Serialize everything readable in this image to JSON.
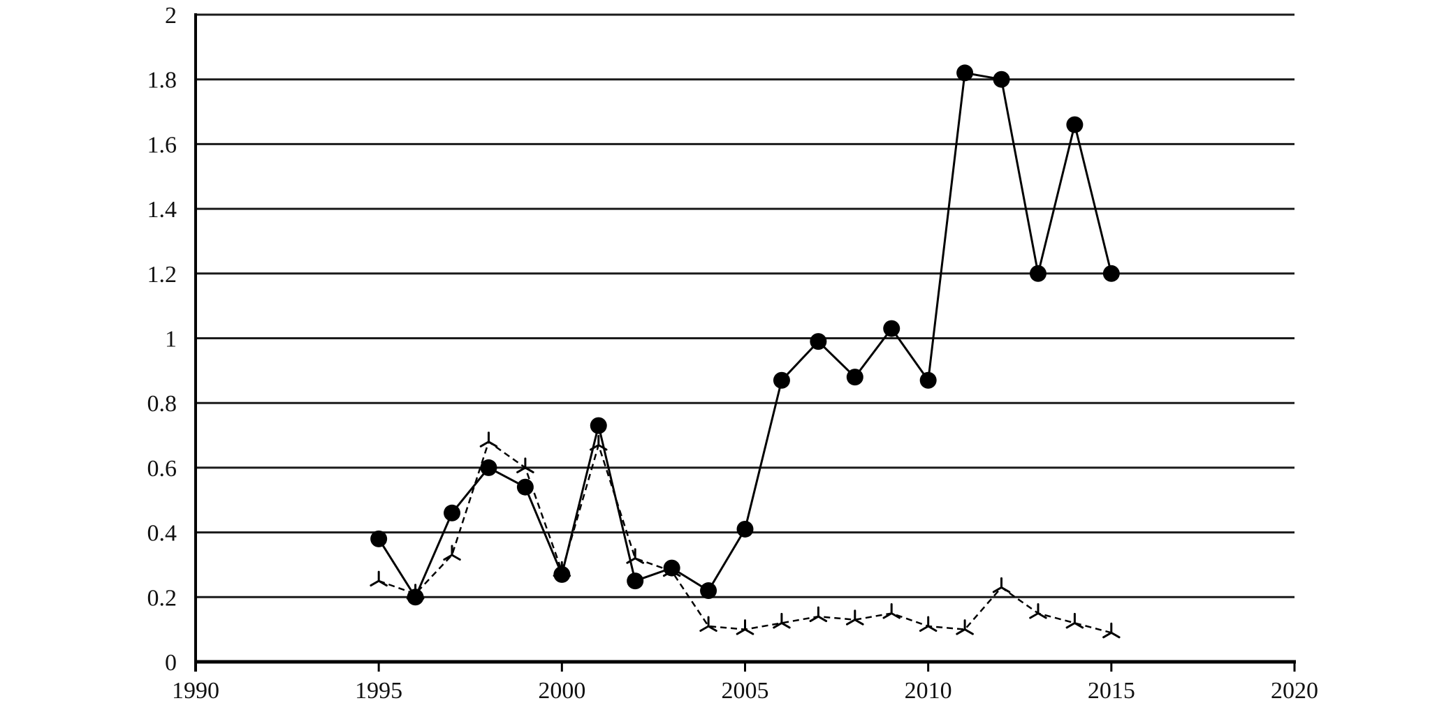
{
  "chart_data": {
    "type": "line",
    "title": "",
    "xlabel": "",
    "ylabel": "",
    "xlim": [
      1990,
      2020
    ],
    "ylim": [
      0,
      2
    ],
    "x_ticks": [
      "1990",
      "1995",
      "2000",
      "2005",
      "2010",
      "2015",
      "2020"
    ],
    "y_ticks": [
      "0",
      "0.2",
      "0.4",
      "0.6",
      "0.8",
      "1",
      "1.2",
      "1.4",
      "1.6",
      "1.8",
      "2"
    ],
    "grid": "horizontal",
    "series": [
      {
        "style": "solid",
        "marker": "filled-circle",
        "color": "#000000",
        "points": [
          [
            1995,
            0.38
          ],
          [
            1996,
            0.2
          ],
          [
            1997,
            0.46
          ],
          [
            1998,
            0.6
          ],
          [
            1999,
            0.54
          ],
          [
            2000,
            0.27
          ],
          [
            2001,
            0.73
          ],
          [
            2002,
            0.25
          ],
          [
            2003,
            0.29
          ],
          [
            2004,
            0.22
          ],
          [
            2005,
            0.41
          ],
          [
            2006,
            0.87
          ],
          [
            2007,
            0.99
          ],
          [
            2008,
            0.88
          ],
          [
            2009,
            1.03
          ],
          [
            2010,
            0.87
          ],
          [
            2011,
            1.82
          ],
          [
            2012,
            1.8
          ],
          [
            2013,
            1.2
          ],
          [
            2014,
            1.66
          ],
          [
            2015,
            1.2
          ]
        ]
      },
      {
        "style": "dashed",
        "marker": "tri-star",
        "color": "#000000",
        "points": [
          [
            1995,
            0.25
          ],
          [
            1996,
            0.21
          ],
          [
            1997,
            0.33
          ],
          [
            1998,
            0.68
          ],
          [
            1999,
            0.6
          ],
          [
            2000,
            0.28
          ],
          [
            2001,
            0.67
          ],
          [
            2002,
            0.32
          ],
          [
            2003,
            0.28
          ],
          [
            2004,
            0.11
          ],
          [
            2005,
            0.1
          ],
          [
            2006,
            0.12
          ],
          [
            2007,
            0.14
          ],
          [
            2008,
            0.13
          ],
          [
            2009,
            0.15
          ],
          [
            2010,
            0.11
          ],
          [
            2011,
            0.1
          ],
          [
            2012,
            0.23
          ],
          [
            2013,
            0.15
          ],
          [
            2014,
            0.12
          ],
          [
            2015,
            0.09
          ]
        ]
      }
    ]
  }
}
